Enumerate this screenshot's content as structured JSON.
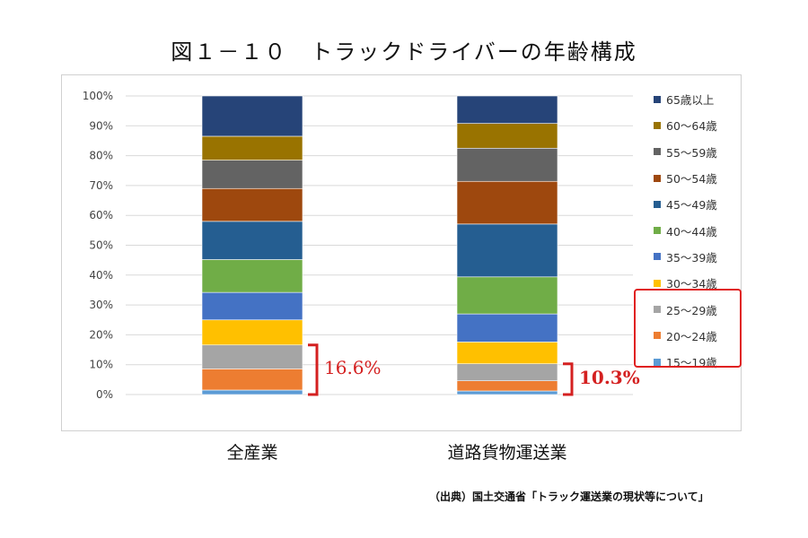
{
  "title": "図１－１０　トラックドライバーの年齢構成",
  "source": "（出典）国土交通省「トラック運送業の現状等について」",
  "chart_data": {
    "type": "bar",
    "stacked": true,
    "percent_stacked": true,
    "categories": [
      "全産業",
      "道路貨物運送業"
    ],
    "ylim": [
      0,
      100
    ],
    "yticks": [
      "0%",
      "10%",
      "20%",
      "30%",
      "40%",
      "50%",
      "60%",
      "70%",
      "80%",
      "90%",
      "100%"
    ],
    "grid": true,
    "legend_position": "right",
    "series": [
      {
        "name": "15〜19歳",
        "color": "#5B9BD5",
        "values": [
          1.5,
          1.2
        ]
      },
      {
        "name": "20〜24歳",
        "color": "#ED7D31",
        "values": [
          7.1,
          3.4
        ]
      },
      {
        "name": "25〜29歳",
        "color": "#A5A5A5",
        "values": [
          8.0,
          5.7
        ]
      },
      {
        "name": "30〜34歳",
        "color": "#FFC000",
        "values": [
          8.4,
          7.3
        ]
      },
      {
        "name": "35〜39歳",
        "color": "#4472C4",
        "values": [
          9.2,
          9.4
        ]
      },
      {
        "name": "40〜44歳",
        "color": "#70AD47",
        "values": [
          11.0,
          12.4
        ]
      },
      {
        "name": "45〜49歳",
        "color": "#255E91",
        "values": [
          12.8,
          17.7
        ]
      },
      {
        "name": "50〜54歳",
        "color": "#9E480E",
        "values": [
          11.0,
          14.3
        ]
      },
      {
        "name": "55〜59歳",
        "color": "#636363",
        "values": [
          9.5,
          11.1
        ]
      },
      {
        "name": "60〜64歳",
        "color": "#997300",
        "values": [
          8.0,
          8.3
        ]
      },
      {
        "name": "65歳以上",
        "color": "#264478",
        "values": [
          13.5,
          9.2
        ]
      }
    ],
    "annotations": [
      {
        "category": "全産業",
        "text": "16.6%",
        "range": [
          0,
          16.6
        ],
        "color": "#d42020"
      },
      {
        "category": "道路貨物運送業",
        "text": "10.3%",
        "range": [
          0,
          10.3
        ],
        "color": "#d42020"
      }
    ]
  }
}
